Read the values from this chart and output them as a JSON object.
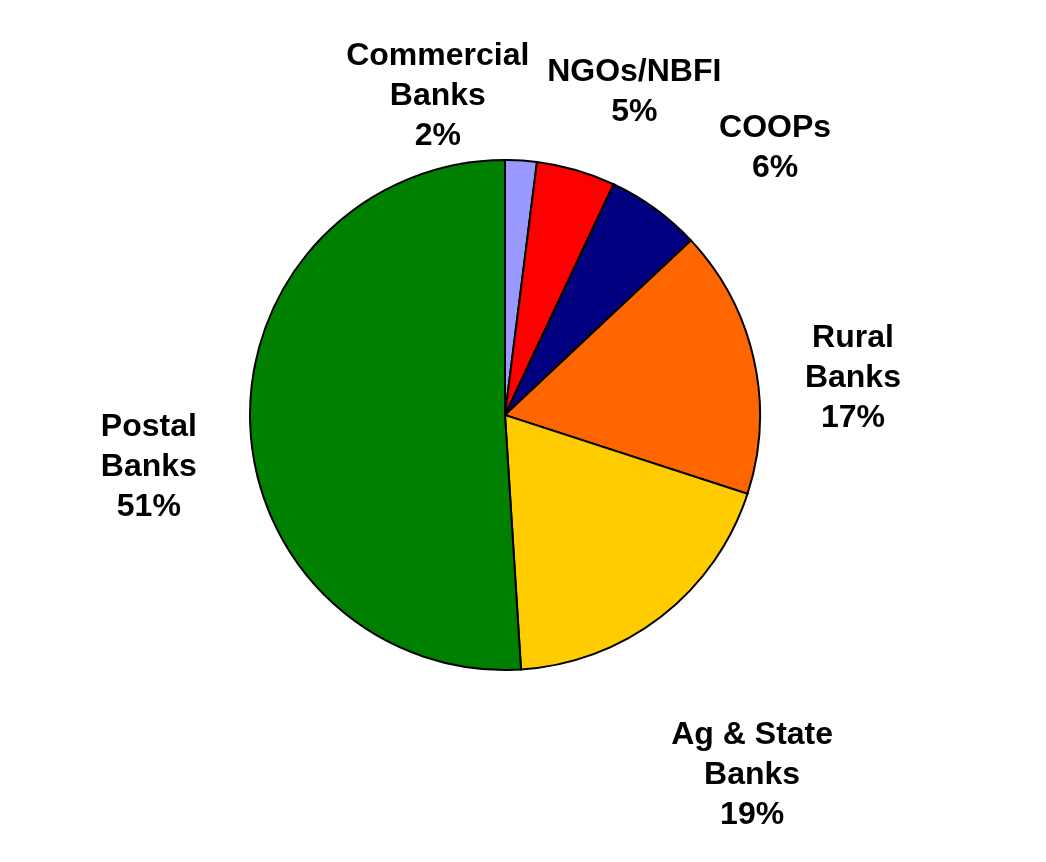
{
  "chart_data": {
    "type": "pie",
    "categories": [
      "Commercial Banks",
      "NGOs/NBFI",
      "COOPs",
      "Rural Banks",
      "Ag & State Banks",
      "Postal Banks"
    ],
    "values": [
      2,
      5,
      6,
      17,
      19,
      51
    ],
    "value_labels": [
      "2%",
      "5%",
      "6%",
      "17%",
      "19%",
      "51%"
    ],
    "colors": [
      "#9999ff",
      "#ff0000",
      "#000080",
      "#ff6600",
      "#ffcc00",
      "#008000"
    ],
    "legend": false
  }
}
